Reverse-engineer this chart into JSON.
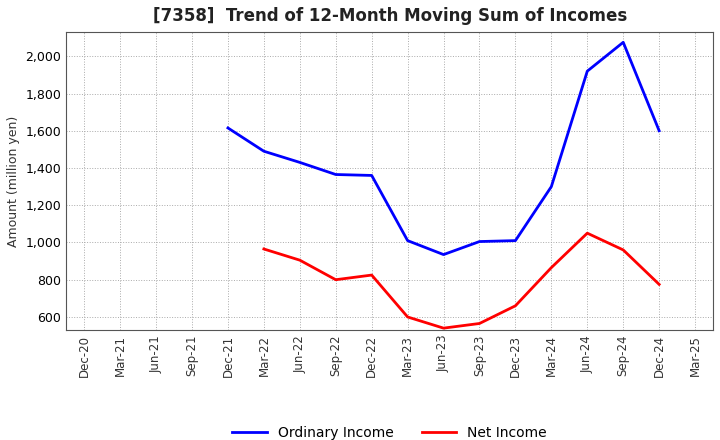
{
  "title": "[7358]  Trend of 12-Month Moving Sum of Incomes",
  "ylabel": "Amount (million yen)",
  "background_color": "#ffffff",
  "grid_color": "#aaaaaa",
  "x_labels": [
    "Dec-20",
    "Mar-21",
    "Jun-21",
    "Sep-21",
    "Dec-21",
    "Mar-22",
    "Jun-22",
    "Sep-22",
    "Dec-22",
    "Mar-23",
    "Jun-23",
    "Sep-23",
    "Dec-23",
    "Mar-24",
    "Jun-24",
    "Sep-24",
    "Dec-24",
    "Mar-25"
  ],
  "ordinary_income": {
    "label": "Ordinary Income",
    "color": "#0000ff",
    "values": [
      null,
      null,
      null,
      null,
      1615,
      1490,
      1430,
      1365,
      1360,
      1010,
      935,
      1005,
      1010,
      1300,
      1920,
      2075,
      1600,
      null
    ]
  },
  "net_income": {
    "label": "Net Income",
    "color": "#ff0000",
    "values": [
      null,
      null,
      null,
      null,
      null,
      965,
      905,
      800,
      825,
      600,
      540,
      565,
      660,
      865,
      1050,
      960,
      775,
      null
    ]
  },
  "ylim": [
    530,
    2130
  ],
  "yticks": [
    600,
    800,
    1000,
    1200,
    1400,
    1600,
    1800,
    2000
  ],
  "linewidth": 2.0
}
